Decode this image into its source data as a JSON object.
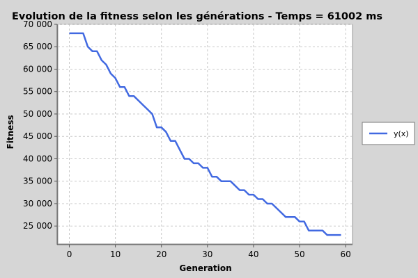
{
  "chart_data": {
    "type": "line",
    "title": "Evolution de la fitness selon les générations - Temps = 61002 ms",
    "xlabel": "Generation",
    "ylabel": "Fitness",
    "xlim": [
      -2.5,
      61.5
    ],
    "ylim": [
      21000,
      70000
    ],
    "xticks": [
      0,
      10,
      20,
      30,
      40,
      50,
      60
    ],
    "yticks": [
      25000,
      30000,
      35000,
      40000,
      45000,
      50000,
      55000,
      60000,
      65000,
      70000
    ],
    "ytick_labels": [
      "25 000",
      "30 000",
      "35 000",
      "40 000",
      "45 000",
      "50 000",
      "55 000",
      "60 000",
      "65 000",
      "70 000"
    ],
    "grid": true,
    "legend_position": "right",
    "series": [
      {
        "name": "y(x)",
        "color": "#4169e1",
        "x": [
          0,
          1,
          2,
          3,
          4,
          5,
          6,
          7,
          8,
          9,
          10,
          11,
          12,
          13,
          14,
          15,
          16,
          17,
          18,
          19,
          20,
          21,
          22,
          23,
          24,
          25,
          26,
          27,
          28,
          29,
          30,
          31,
          32,
          33,
          34,
          35,
          36,
          37,
          38,
          39,
          40,
          41,
          42,
          43,
          44,
          45,
          46,
          47,
          48,
          49,
          50,
          51,
          52,
          53,
          54,
          55,
          56,
          57,
          58,
          59
        ],
        "y": [
          68000,
          68000,
          68000,
          68000,
          65000,
          64000,
          64000,
          62000,
          61000,
          59000,
          58000,
          56000,
          56000,
          54000,
          54000,
          53000,
          52000,
          51000,
          50000,
          47000,
          47000,
          46000,
          44000,
          44000,
          42000,
          40000,
          40000,
          39000,
          39000,
          38000,
          38000,
          36000,
          36000,
          35000,
          35000,
          35000,
          34000,
          33000,
          33000,
          32000,
          32000,
          31000,
          31000,
          30000,
          30000,
          29000,
          28000,
          27000,
          27000,
          27000,
          26000,
          26000,
          24000,
          24000,
          24000,
          24000,
          23000,
          23000,
          23000,
          23000
        ]
      }
    ]
  }
}
